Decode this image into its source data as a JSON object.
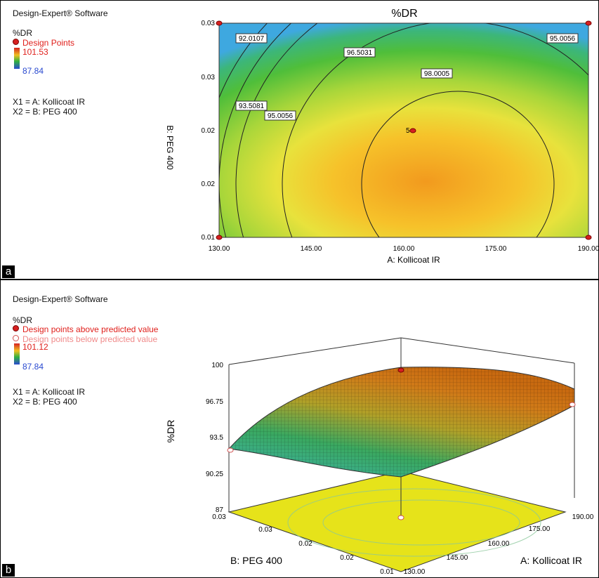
{
  "panel_a": {
    "tag": "a",
    "software": "Design-Expert® Software",
    "response": "%DR",
    "legend_points": "Design Points",
    "scale_max": "101.53",
    "scale_min": "87.84",
    "x1_def": "X1 = A: Kollicoat IR",
    "x2_def": "X2 = B: PEG 400"
  },
  "panel_b": {
    "tag": "b",
    "software": "Design-Expert® Software",
    "response": "%DR",
    "legend_above": "Design points above predicted value",
    "legend_below": "Design points below predicted value",
    "scale_max": "101.12",
    "scale_min": "87.84",
    "x1_def": "X1 = A: Kollicoat IR",
    "x2_def": "X2 = B: PEG 400"
  },
  "chart_data": [
    {
      "type": "contour",
      "title": "%DR",
      "xlabel": "A: Kollicoat IR",
      "ylabel": "B: PEG 400",
      "x_ticks": [
        "130.00",
        "145.00",
        "160.00",
        "175.00",
        "190.00"
      ],
      "y_ticks": [
        "0.01",
        "0.02",
        "0.02",
        "0.03",
        "0.03"
      ],
      "xlim": [
        130,
        190
      ],
      "contour_labels": [
        "92.0107",
        "93.5081",
        "95.0056",
        "96.5031",
        "98.0005",
        "95.0056"
      ],
      "design_points": [
        {
          "x": 160,
          "label": "5"
        }
      ],
      "colors": {
        "low": "#3fa8e0",
        "mid": "#4dbb3a",
        "high": "#f29a1e",
        "peak": "#f6e23a"
      }
    },
    {
      "type": "surface3d",
      "zlabel": "%DR",
      "xlabel": "A: Kollicoat IR",
      "ylabel": "B: PEG 400",
      "z_ticks": [
        "100",
        "96.75",
        "93.5",
        "90.25",
        "87"
      ],
      "x_ticks": [
        "130.00",
        "145.00",
        "160.00",
        "175.00",
        "190.00"
      ],
      "y_ticks": [
        "0.01",
        "0.02",
        "0.02",
        "0.03",
        "0.03"
      ],
      "zlim": [
        87,
        100
      ]
    }
  ]
}
